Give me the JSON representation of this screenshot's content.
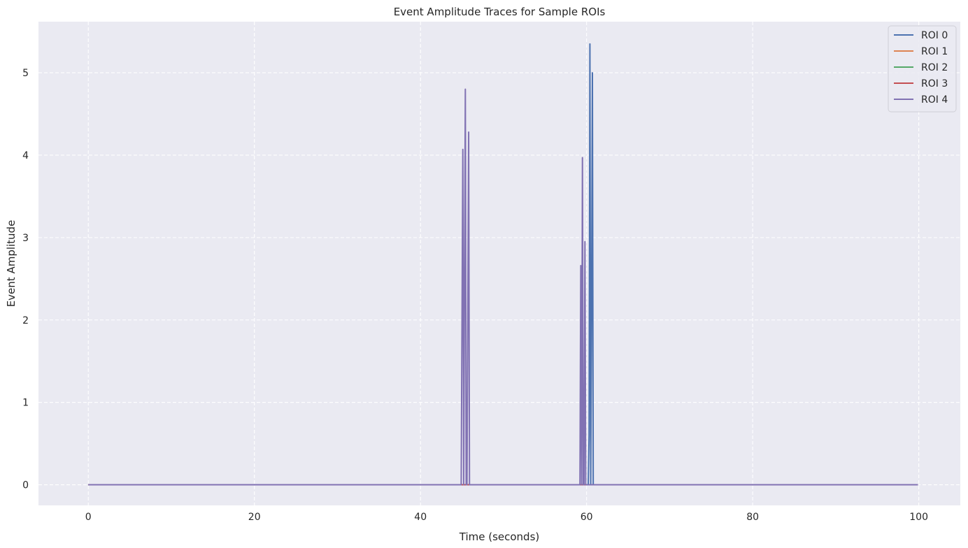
{
  "chart_data": {
    "type": "line",
    "title": "Event Amplitude Traces for Sample ROIs",
    "xlabel": "Time (seconds)",
    "ylabel": "Event Amplitude",
    "xlim": [
      -6,
      105
    ],
    "ylim": [
      -0.25,
      5.62
    ],
    "xticks": [
      0,
      20,
      40,
      60,
      80,
      100
    ],
    "yticks": [
      0,
      1,
      2,
      3,
      4,
      5
    ],
    "grid": true,
    "legend_position": "top-right",
    "background_color": "#EAEAF2",
    "series": [
      {
        "name": "ROI 0",
        "color": "#4C72B0",
        "x": [
          0,
          60.2,
          60.3,
          60.4,
          60.5,
          60.6,
          60.7,
          60.8,
          99.9
        ],
        "y": [
          0,
          0,
          0.6,
          5.35,
          0,
          2.2,
          5.0,
          0,
          0
        ]
      },
      {
        "name": "ROI 1",
        "color": "#DD8452",
        "x": [
          0,
          99.9
        ],
        "y": [
          0,
          0
        ]
      },
      {
        "name": "ROI 2",
        "color": "#55A868",
        "x": [
          0,
          99.9
        ],
        "y": [
          0,
          0
        ]
      },
      {
        "name": "ROI 3",
        "color": "#C44E52",
        "x": [
          0,
          99.9
        ],
        "y": [
          0,
          0
        ]
      },
      {
        "name": "ROI 4",
        "color": "#8172B3",
        "x": [
          0,
          44.9,
          45.1,
          45.2,
          45.3,
          45.4,
          45.5,
          45.6,
          45.8,
          45.9,
          46.0,
          59.2,
          59.3,
          59.4,
          59.5,
          59.6,
          59.7,
          59.8,
          59.9,
          99.9
        ],
        "y": [
          0,
          0,
          4.07,
          0,
          2.5,
          4.8,
          0,
          0,
          4.28,
          0,
          0,
          0,
          2.66,
          0,
          3.97,
          0,
          0,
          2.95,
          0,
          0
        ]
      }
    ]
  }
}
